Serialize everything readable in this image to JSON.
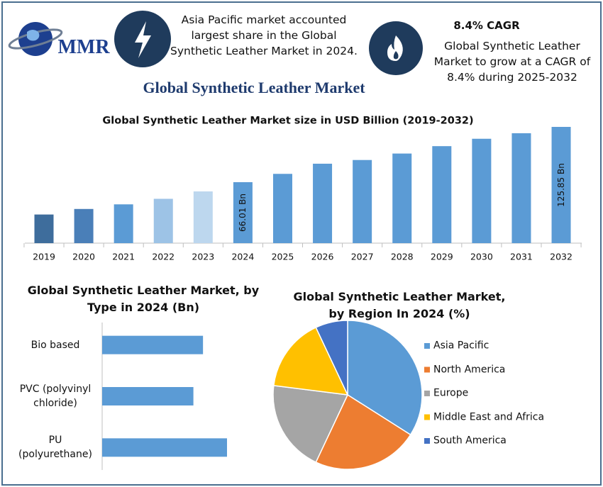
{
  "header": {
    "logo": "MMR",
    "highlight": "Asia Pacific market accounted largest share in the Global Synthetic Leather Market in 2024.",
    "cagr_title": "8.4% CAGR",
    "cagr_text": "Global Synthetic Leather Market to grow at a CAGR of 8.4% during 2025-2032",
    "title": "Global Synthetic Leather Market"
  },
  "chart_data": [
    {
      "type": "bar",
      "title": "Global Synthetic Leather Market size in USD Billion (2019-2032)",
      "categories": [
        "2019",
        "2020",
        "2021",
        "2022",
        "2023",
        "2024",
        "2025",
        "2026",
        "2027",
        "2028",
        "2029",
        "2030",
        "2031",
        "2032"
      ],
      "values": [
        31,
        37,
        42,
        48,
        56,
        66.01,
        75,
        86,
        90,
        97,
        105,
        113,
        119,
        125.85
      ],
      "value_labels": [
        null,
        null,
        null,
        null,
        null,
        "66.01 Bn",
        null,
        null,
        null,
        null,
        null,
        null,
        null,
        "125.85 Bn"
      ],
      "colors": [
        "#3e6d9c",
        "#4a7fb8",
        "#5b9bd5",
        "#9dc3e6",
        "#bdd7ee",
        "#5b9bd5",
        "#5b9bd5",
        "#5b9bd5",
        "#5b9bd5",
        "#5b9bd5",
        "#5b9bd5",
        "#5b9bd5",
        "#5b9bd5",
        "#5b9bd5"
      ]
    },
    {
      "type": "hbar",
      "title": "Global Synthetic Leather Market, by Type in 2024 (Bn)",
      "categories": [
        "Bio based",
        "PVC (polyvinyl chloride)",
        "PU (polyurethane)"
      ],
      "values": [
        21,
        19,
        26
      ],
      "color": "#5b9bd5"
    },
    {
      "type": "pie",
      "title": "Global Synthetic Leather Market, by Region In 2024 (%)",
      "categories": [
        "Asia Pacific",
        "North America",
        "Europe",
        "Middle East and Africa",
        "South America"
      ],
      "values": [
        34,
        23,
        20,
        16,
        7
      ],
      "colors": [
        "#5b9bd5",
        "#ed7d31",
        "#a5a5a5",
        "#ffc000",
        "#4472c4"
      ],
      "legend": "right"
    }
  ]
}
